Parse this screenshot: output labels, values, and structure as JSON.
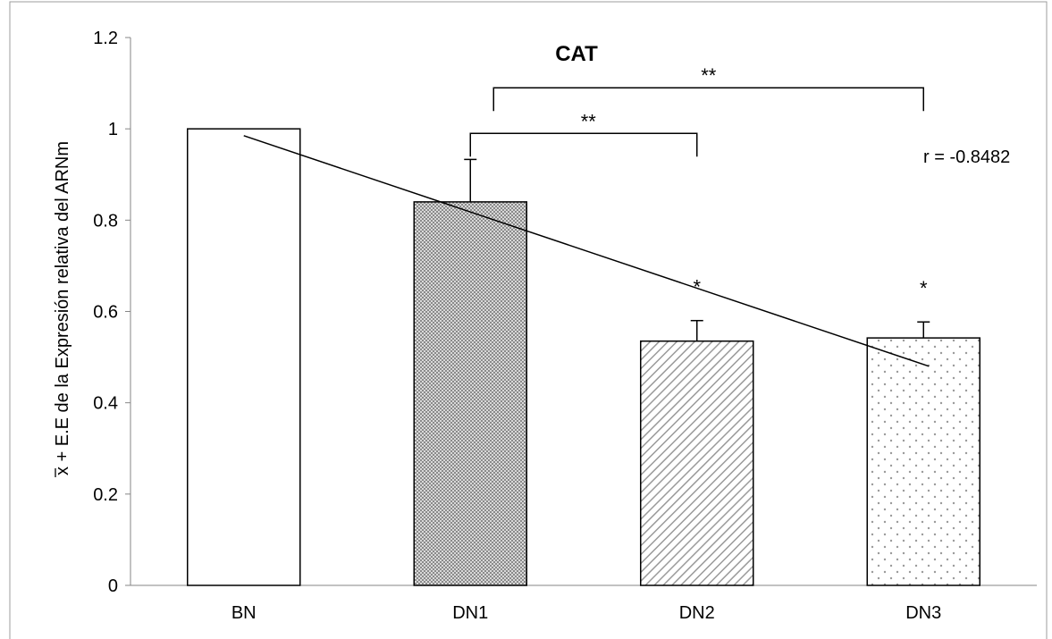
{
  "chart_data": {
    "type": "bar",
    "title": "CAT",
    "ylabel": "x + E.E de la Expresión relativa del ARNm",
    "ylabel_overline_char": "x",
    "xlabel": "",
    "categories": [
      "BN",
      "DN1",
      "DN2",
      "DN3"
    ],
    "values": [
      1.0,
      0.84,
      0.535,
      0.542
    ],
    "errors": [
      0.0,
      0.093,
      0.045,
      0.035
    ],
    "patterns": [
      "white",
      "crosshatch",
      "diagonal",
      "dots"
    ],
    "ylim": [
      0,
      1.2
    ],
    "yticks": [
      "0",
      "0.2",
      "0.4",
      "0.6",
      "0.8",
      "1",
      "1.2"
    ],
    "significance": [
      {
        "category": "DN2",
        "label": "*"
      },
      {
        "category": "DN3",
        "label": "*"
      }
    ],
    "brackets": [
      {
        "from": "DN1",
        "to": "DN2",
        "label": "**",
        "y": 0.99
      },
      {
        "from": "DN1",
        "to": "DN3",
        "label": "**",
        "y": 1.09
      }
    ],
    "trendline": {
      "start": 0.985,
      "end": 0.48,
      "annotation": "r = -0.8482"
    },
    "grid": false,
    "legend": "none"
  }
}
